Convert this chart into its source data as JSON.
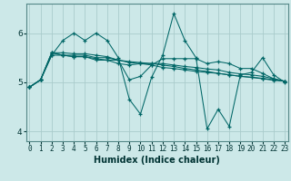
{
  "xlabel": "Humidex (Indice chaleur)",
  "bg_color": "#cce8e8",
  "line_color": "#006666",
  "grid_color": "#aacccc",
  "x": [
    0,
    1,
    2,
    3,
    4,
    5,
    6,
    7,
    8,
    9,
    10,
    11,
    12,
    13,
    14,
    15,
    16,
    17,
    18,
    19,
    20,
    21,
    22,
    23
  ],
  "series": [
    [
      4.9,
      5.05,
      5.55,
      5.55,
      5.55,
      5.55,
      5.5,
      5.5,
      5.45,
      5.4,
      5.38,
      5.35,
      5.3,
      5.28,
      5.25,
      5.22,
      5.2,
      5.18,
      5.15,
      5.12,
      5.1,
      5.08,
      5.05,
      5.02
    ],
    [
      4.9,
      5.05,
      5.55,
      5.85,
      6.0,
      5.85,
      6.0,
      5.85,
      5.5,
      4.65,
      4.35,
      5.1,
      5.55,
      6.4,
      5.85,
      5.5,
      4.05,
      4.45,
      4.1,
      5.15,
      5.2,
      5.5,
      5.15,
      5.0
    ],
    [
      4.9,
      5.05,
      5.6,
      5.6,
      5.58,
      5.58,
      5.55,
      5.52,
      5.45,
      5.42,
      5.4,
      5.38,
      5.35,
      5.32,
      5.28,
      5.25,
      5.22,
      5.18,
      5.15,
      5.12,
      5.1,
      5.07,
      5.04,
      5.02
    ],
    [
      4.9,
      5.05,
      5.6,
      5.55,
      5.52,
      5.52,
      5.48,
      5.45,
      5.38,
      5.35,
      5.38,
      5.38,
      5.38,
      5.35,
      5.32,
      5.3,
      5.27,
      5.25,
      5.2,
      5.17,
      5.15,
      5.12,
      5.07,
      5.02
    ],
    [
      4.9,
      5.05,
      5.6,
      5.55,
      5.52,
      5.52,
      5.45,
      5.45,
      5.45,
      5.05,
      5.12,
      5.35,
      5.48,
      5.48,
      5.48,
      5.48,
      5.38,
      5.42,
      5.38,
      5.28,
      5.28,
      5.18,
      5.07,
      5.02
    ]
  ],
  "ylim": [
    3.8,
    6.6
  ],
  "xlim": [
    -0.3,
    23.3
  ],
  "yticks": [
    4,
    5,
    6
  ],
  "xticks": [
    0,
    1,
    2,
    3,
    4,
    5,
    6,
    7,
    8,
    9,
    10,
    11,
    12,
    13,
    14,
    15,
    16,
    17,
    18,
    19,
    20,
    21,
    22,
    23
  ],
  "xtick_labels": [
    "0",
    "1",
    "2",
    "3",
    "4",
    "5",
    "6",
    "7",
    "8",
    "9",
    "10",
    "11",
    "12",
    "13",
    "14",
    "15",
    "16",
    "17",
    "18",
    "19",
    "20",
    "21",
    "22",
    "23"
  ]
}
